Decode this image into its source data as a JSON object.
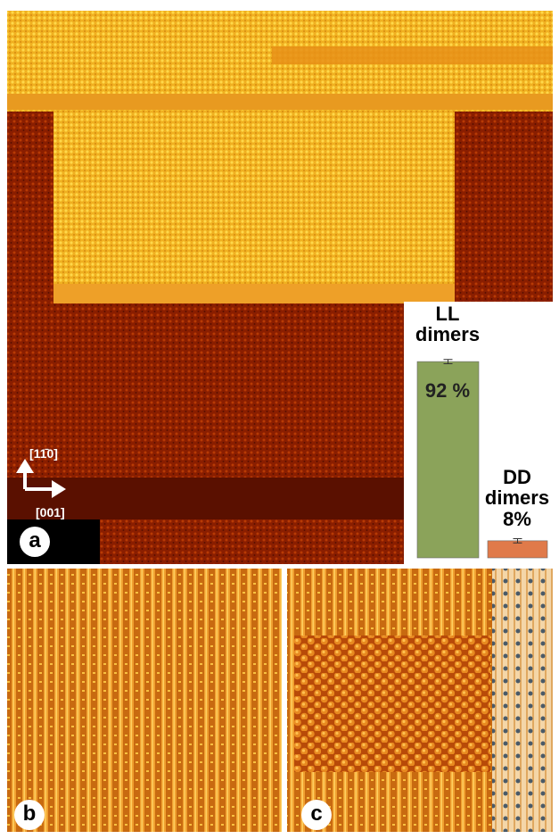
{
  "panels": {
    "a": "a",
    "b": "b",
    "c": "c"
  },
  "directions": {
    "vertical": "[11̄0]",
    "horizontal": "[001]"
  },
  "chart_data": {
    "type": "bar",
    "categories": [
      "LL dimers",
      "DD dimers"
    ],
    "values": [
      92,
      8
    ],
    "value_labels": [
      "92 %",
      "8%"
    ],
    "errors": [
      1,
      1
    ],
    "colors": [
      "#8ba35a",
      "#e07a4a"
    ],
    "ylim": [
      0,
      100
    ]
  }
}
